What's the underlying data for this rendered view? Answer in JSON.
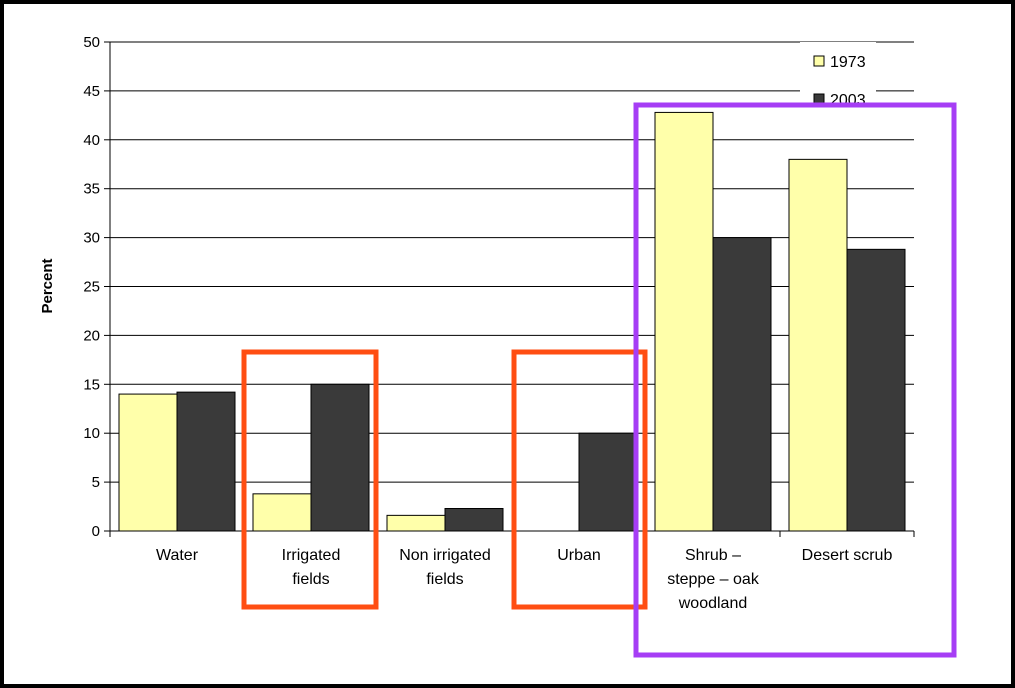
{
  "chart_data": {
    "type": "bar",
    "title": "",
    "xlabel": "",
    "ylabel": "Percent",
    "ylim": [
      0,
      50
    ],
    "y_ticks": [
      0,
      5,
      10,
      15,
      20,
      25,
      30,
      35,
      40,
      45,
      50
    ],
    "grid": true,
    "legend_position": "top-right",
    "categories": [
      [
        "Water"
      ],
      [
        "Irrigated",
        "fields"
      ],
      [
        "Non irrigated",
        "fields"
      ],
      [
        "Urban"
      ],
      [
        "Shrub –",
        "steppe – oak",
        "woodland"
      ],
      [
        "Desert scrub"
      ]
    ],
    "series": [
      {
        "name": "1973",
        "color": "#ffffaa",
        "values": [
          14,
          3.8,
          1.6,
          0,
          42.8,
          38
        ]
      },
      {
        "name": "2003",
        "color": "#3a3a3a",
        "values": [
          14.2,
          15,
          2.3,
          10,
          30,
          28.8
        ]
      }
    ],
    "highlight_boxes": [
      {
        "color": "#ff4e12",
        "categories": [
          1
        ]
      },
      {
        "color": "#ff4e12",
        "categories": [
          3
        ]
      },
      {
        "color": "#a63df5",
        "categories": [
          4,
          5
        ]
      }
    ]
  }
}
